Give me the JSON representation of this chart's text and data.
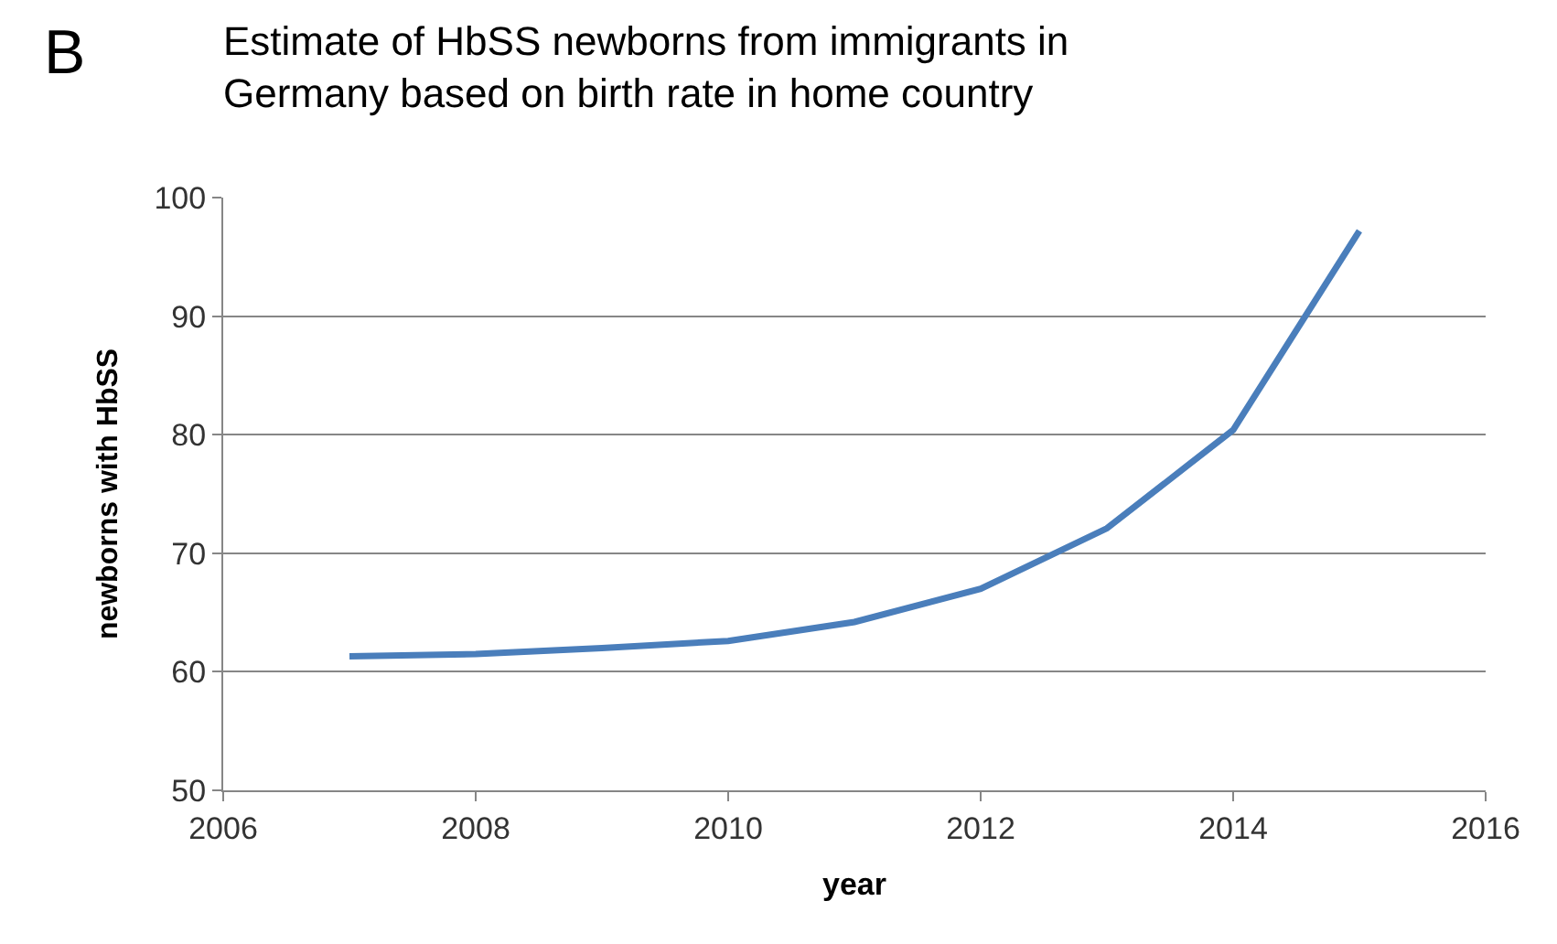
{
  "chart_data": {
    "type": "line",
    "title": "Estimate of HbSS newborns from immigrants in Germany based on birth rate in home country",
    "xlabel": "year",
    "ylabel": "newborns with HbSS",
    "annotations": [
      "B"
    ],
    "x": [
      2007,
      2008,
      2009,
      2010,
      2011,
      2012,
      2013,
      2014,
      2015
    ],
    "series": [
      {
        "color": "#4a7ebb",
        "values": [
          61.3,
          61.5,
          62.0,
          62.6,
          64.2,
          67.0,
          72.1,
          80.4,
          97.2
        ]
      }
    ],
    "xlim": [
      2006,
      2016
    ],
    "xticks": [
      2006,
      2008,
      2010,
      2012,
      2014,
      2016
    ],
    "ylim": [
      50,
      100
    ],
    "yticks": [
      50,
      60,
      70,
      80,
      90,
      100
    ],
    "grid": "y",
    "marker": "none",
    "line_style": "solid"
  }
}
